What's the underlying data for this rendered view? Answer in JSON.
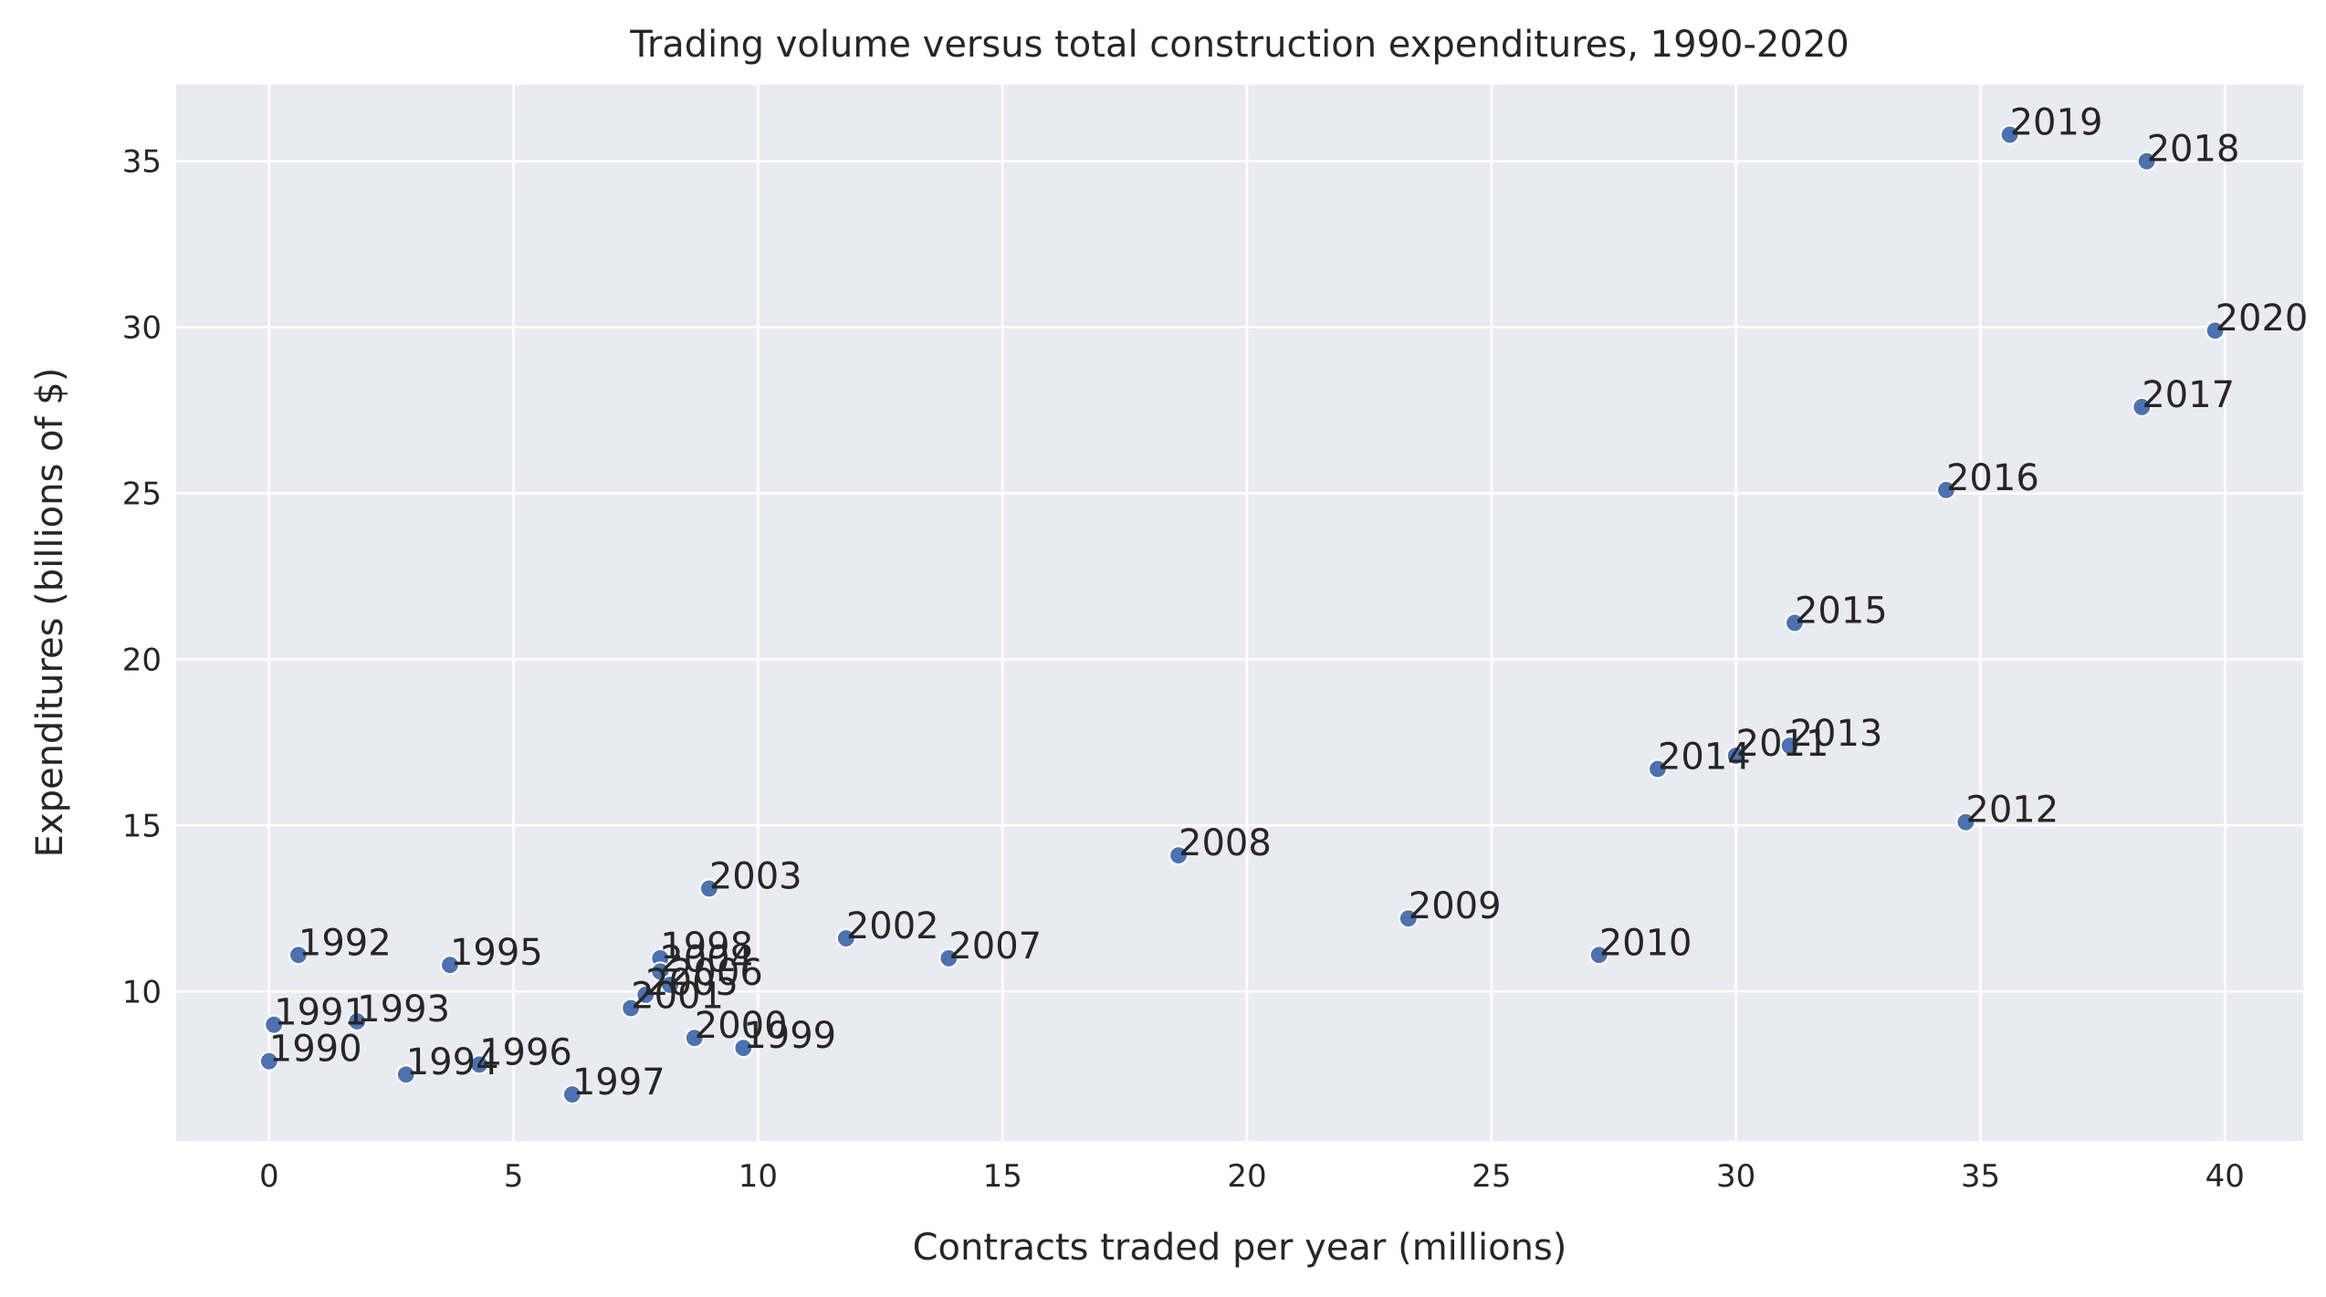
{
  "chart_data": {
    "type": "scatter",
    "title": "Trading volume versus total construction expenditures, 1990-2020",
    "xlabel": "Contracts traded per year (millions)",
    "ylabel": "Expenditures (billions of $)",
    "xlim": [
      -1.9,
      41.6
    ],
    "ylim": [
      5.5,
      37.3
    ],
    "xticks": [
      0,
      5,
      10,
      15,
      20,
      25,
      30,
      35,
      40
    ],
    "yticks": [
      10,
      15,
      20,
      25,
      30,
      35
    ],
    "grid": true,
    "legend": "none",
    "background_color": "#eaeaf2",
    "point_color": "#4c72b0",
    "points": [
      {
        "label": "1990",
        "x": 0.0,
        "y": 7.9
      },
      {
        "label": "1991",
        "x": 0.1,
        "y": 9.0
      },
      {
        "label": "1992",
        "x": 0.6,
        "y": 11.1
      },
      {
        "label": "1993",
        "x": 1.8,
        "y": 9.1
      },
      {
        "label": "1994",
        "x": 2.8,
        "y": 7.5
      },
      {
        "label": "1995",
        "x": 3.7,
        "y": 10.8
      },
      {
        "label": "1996",
        "x": 4.3,
        "y": 7.8
      },
      {
        "label": "1997",
        "x": 6.2,
        "y": 6.9
      },
      {
        "label": "1998",
        "x": 8.0,
        "y": 11.0
      },
      {
        "label": "1999",
        "x": 9.7,
        "y": 8.3
      },
      {
        "label": "2000",
        "x": 8.7,
        "y": 8.6
      },
      {
        "label": "2001",
        "x": 7.4,
        "y": 9.5
      },
      {
        "label": "2002",
        "x": 11.8,
        "y": 11.6
      },
      {
        "label": "2003",
        "x": 9.0,
        "y": 13.1
      },
      {
        "label": "2004",
        "x": 8.0,
        "y": 10.6
      },
      {
        "label": "2005",
        "x": 7.7,
        "y": 9.9
      },
      {
        "label": "2006",
        "x": 8.2,
        "y": 10.2
      },
      {
        "label": "2007",
        "x": 13.9,
        "y": 11.0
      },
      {
        "label": "2008",
        "x": 18.6,
        "y": 14.1
      },
      {
        "label": "2009",
        "x": 23.3,
        "y": 12.2
      },
      {
        "label": "2010",
        "x": 27.2,
        "y": 11.1
      },
      {
        "label": "2011",
        "x": 30.0,
        "y": 17.1
      },
      {
        "label": "2012",
        "x": 34.7,
        "y": 15.1
      },
      {
        "label": "2013",
        "x": 31.1,
        "y": 17.4
      },
      {
        "label": "2014",
        "x": 28.4,
        "y": 16.7
      },
      {
        "label": "2015",
        "x": 31.2,
        "y": 21.1
      },
      {
        "label": "2016",
        "x": 34.3,
        "y": 25.1
      },
      {
        "label": "2017",
        "x": 38.3,
        "y": 27.6
      },
      {
        "label": "2018",
        "x": 38.4,
        "y": 35.0
      },
      {
        "label": "2019",
        "x": 35.6,
        "y": 35.8
      },
      {
        "label": "2020",
        "x": 39.8,
        "y": 29.9
      }
    ]
  }
}
